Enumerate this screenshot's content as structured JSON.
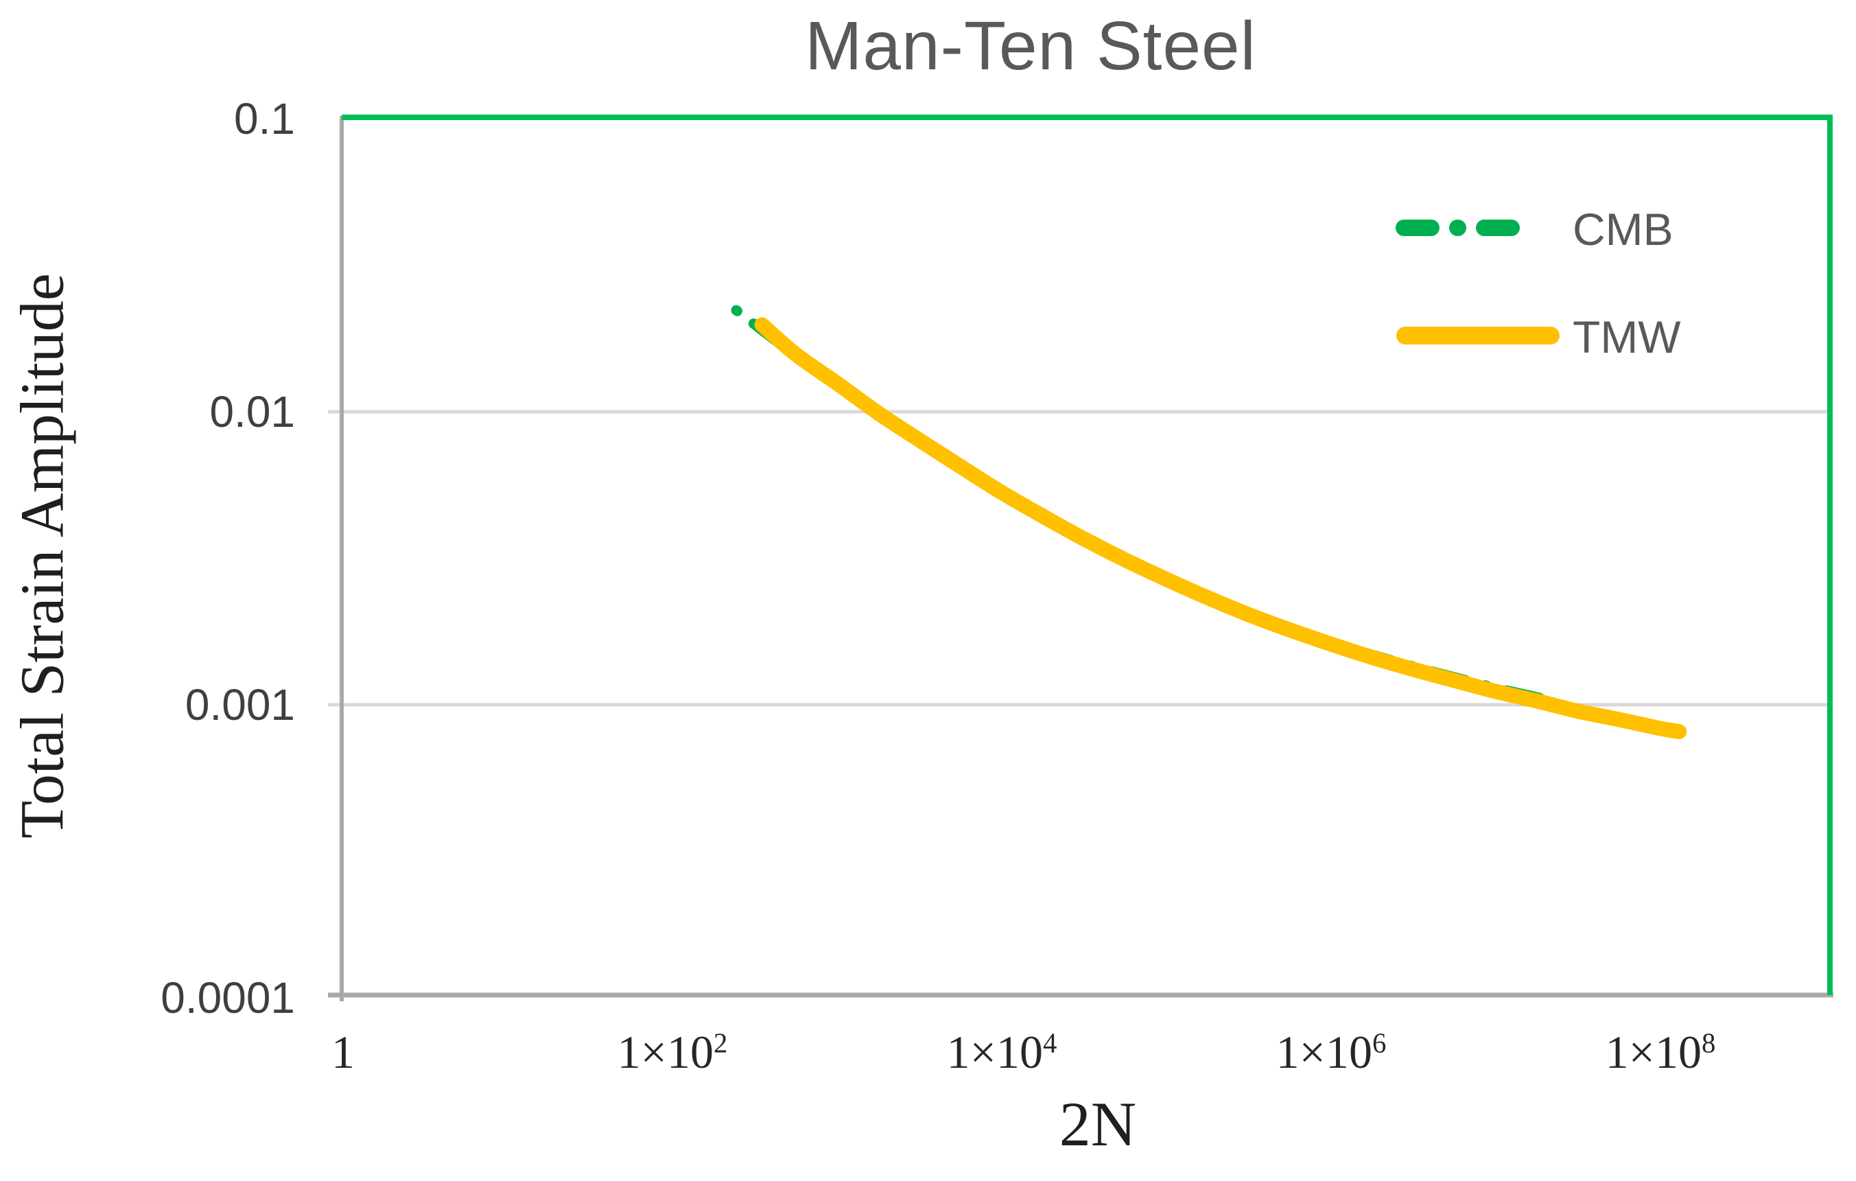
{
  "palette": {
    "series_green": "#00B050",
    "series_orange": "#FFC000",
    "border_green": "#00BE57",
    "axis_gray": "#A9A9A9",
    "grid_gray": "#D9D9D9"
  },
  "chart_data": {
    "type": "line",
    "title": "Man-Ten Steel",
    "xlabel": "2N",
    "ylabel": "Total Strain Amplitude",
    "x_scale": "log",
    "y_scale": "log",
    "xlim": [
      1,
      320000000
    ],
    "ylim": [
      0.0001,
      0.1
    ],
    "grid": "horizontal-major",
    "x_ticks": [
      {
        "base": "1",
        "exp": "",
        "value": 1
      },
      {
        "base": "1×10",
        "exp": "2",
        "value": 100
      },
      {
        "base": "1×10",
        "exp": "4",
        "value": 10000
      },
      {
        "base": "1×10",
        "exp": "6",
        "value": 1000000
      },
      {
        "base": "1×10",
        "exp": "8",
        "value": 100000000
      }
    ],
    "y_ticks": [
      {
        "label": "0.1",
        "value": 0.1,
        "gridline": false
      },
      {
        "label": "0.01",
        "value": 0.01,
        "gridline": true
      },
      {
        "label": "0.001",
        "value": 0.001,
        "gridline": true
      },
      {
        "label": "0.0001",
        "value": 0.0001,
        "gridline": false
      }
    ],
    "legend": {
      "position": "top-right-inside",
      "entries": [
        {
          "label": "CMB",
          "color": "#00B050",
          "style": "dash-dot"
        },
        {
          "label": "TMW",
          "color": "#FFC000",
          "style": "solid"
        }
      ]
    },
    "series": [
      {
        "name": "CMB",
        "style": "dash-dot",
        "color": "#00B050",
        "points": [
          [
            244,
            0.0222
          ],
          [
            350,
            0.019
          ],
          [
            562,
            0.0155
          ],
          [
            1000,
            0.0123
          ],
          [
            1778,
            0.0098
          ],
          [
            3162,
            0.0079
          ],
          [
            5623,
            0.0064
          ],
          [
            10000,
            0.00522
          ],
          [
            17783,
            0.00433
          ],
          [
            31623,
            0.00362
          ],
          [
            56234,
            0.00307
          ],
          [
            100000,
            0.00264
          ],
          [
            177828,
            0.00229
          ],
          [
            316228,
            0.00201
          ],
          [
            562341,
            0.00179
          ],
          [
            1000000,
            0.00163
          ],
          [
            1778279,
            0.00148
          ],
          [
            3162278,
            0.00135
          ],
          [
            5623413,
            0.00124
          ],
          [
            10000000,
            0.00114
          ],
          [
            17782794,
            0.00106
          ],
          [
            20000000,
            0.00103
          ]
        ]
      },
      {
        "name": "TMW",
        "style": "solid",
        "color": "#FFC000",
        "points": [
          [
            350,
            0.0198
          ],
          [
            562,
            0.0157
          ],
          [
            1000,
            0.0125
          ],
          [
            1778,
            0.0099
          ],
          [
            3162,
            0.008
          ],
          [
            5623,
            0.0065
          ],
          [
            10000,
            0.0053
          ],
          [
            17783,
            0.0044
          ],
          [
            31623,
            0.00368
          ],
          [
            56234,
            0.00312
          ],
          [
            100000,
            0.00268
          ],
          [
            177828,
            0.00232
          ],
          [
            316228,
            0.00203
          ],
          [
            562341,
            0.0018
          ],
          [
            1000000,
            0.00161
          ],
          [
            1778279,
            0.00145
          ],
          [
            3162278,
            0.00132
          ],
          [
            5623413,
            0.00121
          ],
          [
            10000000,
            0.00111
          ],
          [
            17782794,
            0.00103
          ],
          [
            31622777,
            0.00095
          ],
          [
            56234133,
            0.00089
          ],
          [
            100000000,
            0.00083
          ],
          [
            130000000,
            0.00081
          ]
        ]
      }
    ]
  }
}
